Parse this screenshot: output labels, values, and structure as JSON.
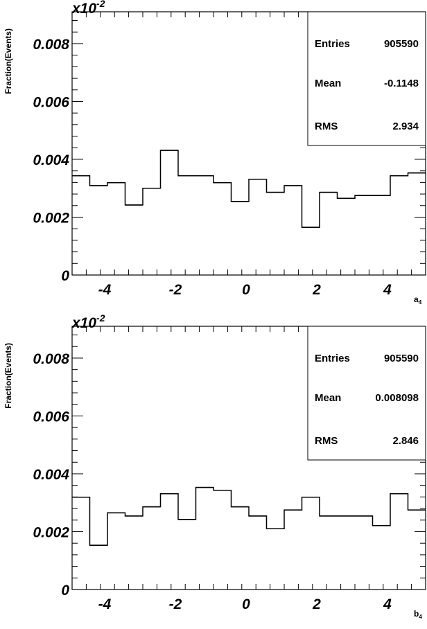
{
  "chart_data": [
    {
      "type": "histogram",
      "title": "",
      "ylabel": "Fraction(Events)",
      "xlabel": "a",
      "xlabel_sub": "4",
      "y_multiplier": {
        "base": "x10",
        "exp": "-2"
      },
      "xlim": [
        -5,
        5
      ],
      "ylim": [
        0,
        0.0091
      ],
      "x_ticks": [
        -4,
        -2,
        0,
        2,
        4
      ],
      "x_tick_labels": [
        "-4",
        "-2",
        "0",
        "2",
        "4"
      ],
      "y_ticks": [
        0,
        0.002,
        0.004,
        0.006,
        0.008
      ],
      "y_tick_labels": [
        "0",
        "0.002",
        "0.004",
        "0.006",
        "0.008"
      ],
      "bin_edges": [
        -5,
        -4.5,
        -4,
        -3.5,
        -3,
        -2.5,
        -2,
        -1.5,
        -1,
        -0.5,
        0,
        0.5,
        1,
        1.5,
        2,
        2.5,
        3,
        3.5,
        4,
        4.5,
        5
      ],
      "values": [
        0.00343,
        0.00309,
        0.00319,
        0.00242,
        0.003,
        0.00431,
        0.00343,
        0.00343,
        0.00319,
        0.00254,
        0.00331,
        0.00286,
        0.00309,
        0.00165,
        0.00286,
        0.00265,
        0.00275,
        0.00275,
        0.00343,
        0.00353
      ],
      "stats": [
        {
          "label": "Entries",
          "value": "905590"
        },
        {
          "label": "Mean",
          "value": "-0.1148"
        },
        {
          "label": "RMS",
          "value": "2.934"
        }
      ]
    },
    {
      "type": "histogram",
      "title": "",
      "ylabel": "Fraction(Events)",
      "xlabel": "b",
      "xlabel_sub": "4",
      "y_multiplier": {
        "base": "x10",
        "exp": "-2"
      },
      "xlim": [
        -5,
        5
      ],
      "ylim": [
        0,
        0.0091
      ],
      "x_ticks": [
        -4,
        -2,
        0,
        2,
        4
      ],
      "x_tick_labels": [
        "-4",
        "-2",
        "0",
        "2",
        "4"
      ],
      "y_ticks": [
        0,
        0.002,
        0.004,
        0.006,
        0.008
      ],
      "y_tick_labels": [
        "0",
        "0.002",
        "0.004",
        "0.006",
        "0.008"
      ],
      "bin_edges": [
        -5,
        -4.5,
        -4,
        -3.5,
        -3,
        -2.5,
        -2,
        -1.5,
        -1,
        -0.5,
        0,
        0.5,
        1,
        1.5,
        2,
        2.5,
        3,
        3.5,
        4,
        4.5,
        5
      ],
      "values": [
        0.00319,
        0.00153,
        0.00265,
        0.00254,
        0.00286,
        0.00331,
        0.00242,
        0.00353,
        0.00343,
        0.00286,
        0.00254,
        0.0021,
        0.00275,
        0.00319,
        0.00254,
        0.00254,
        0.00254,
        0.00221,
        0.00331,
        0.00275
      ],
      "stats": [
        {
          "label": "Entries",
          "value": "905590"
        },
        {
          "label": "Mean",
          "value": "0.008098"
        },
        {
          "label": "RMS",
          "value": "2.846"
        }
      ]
    }
  ]
}
